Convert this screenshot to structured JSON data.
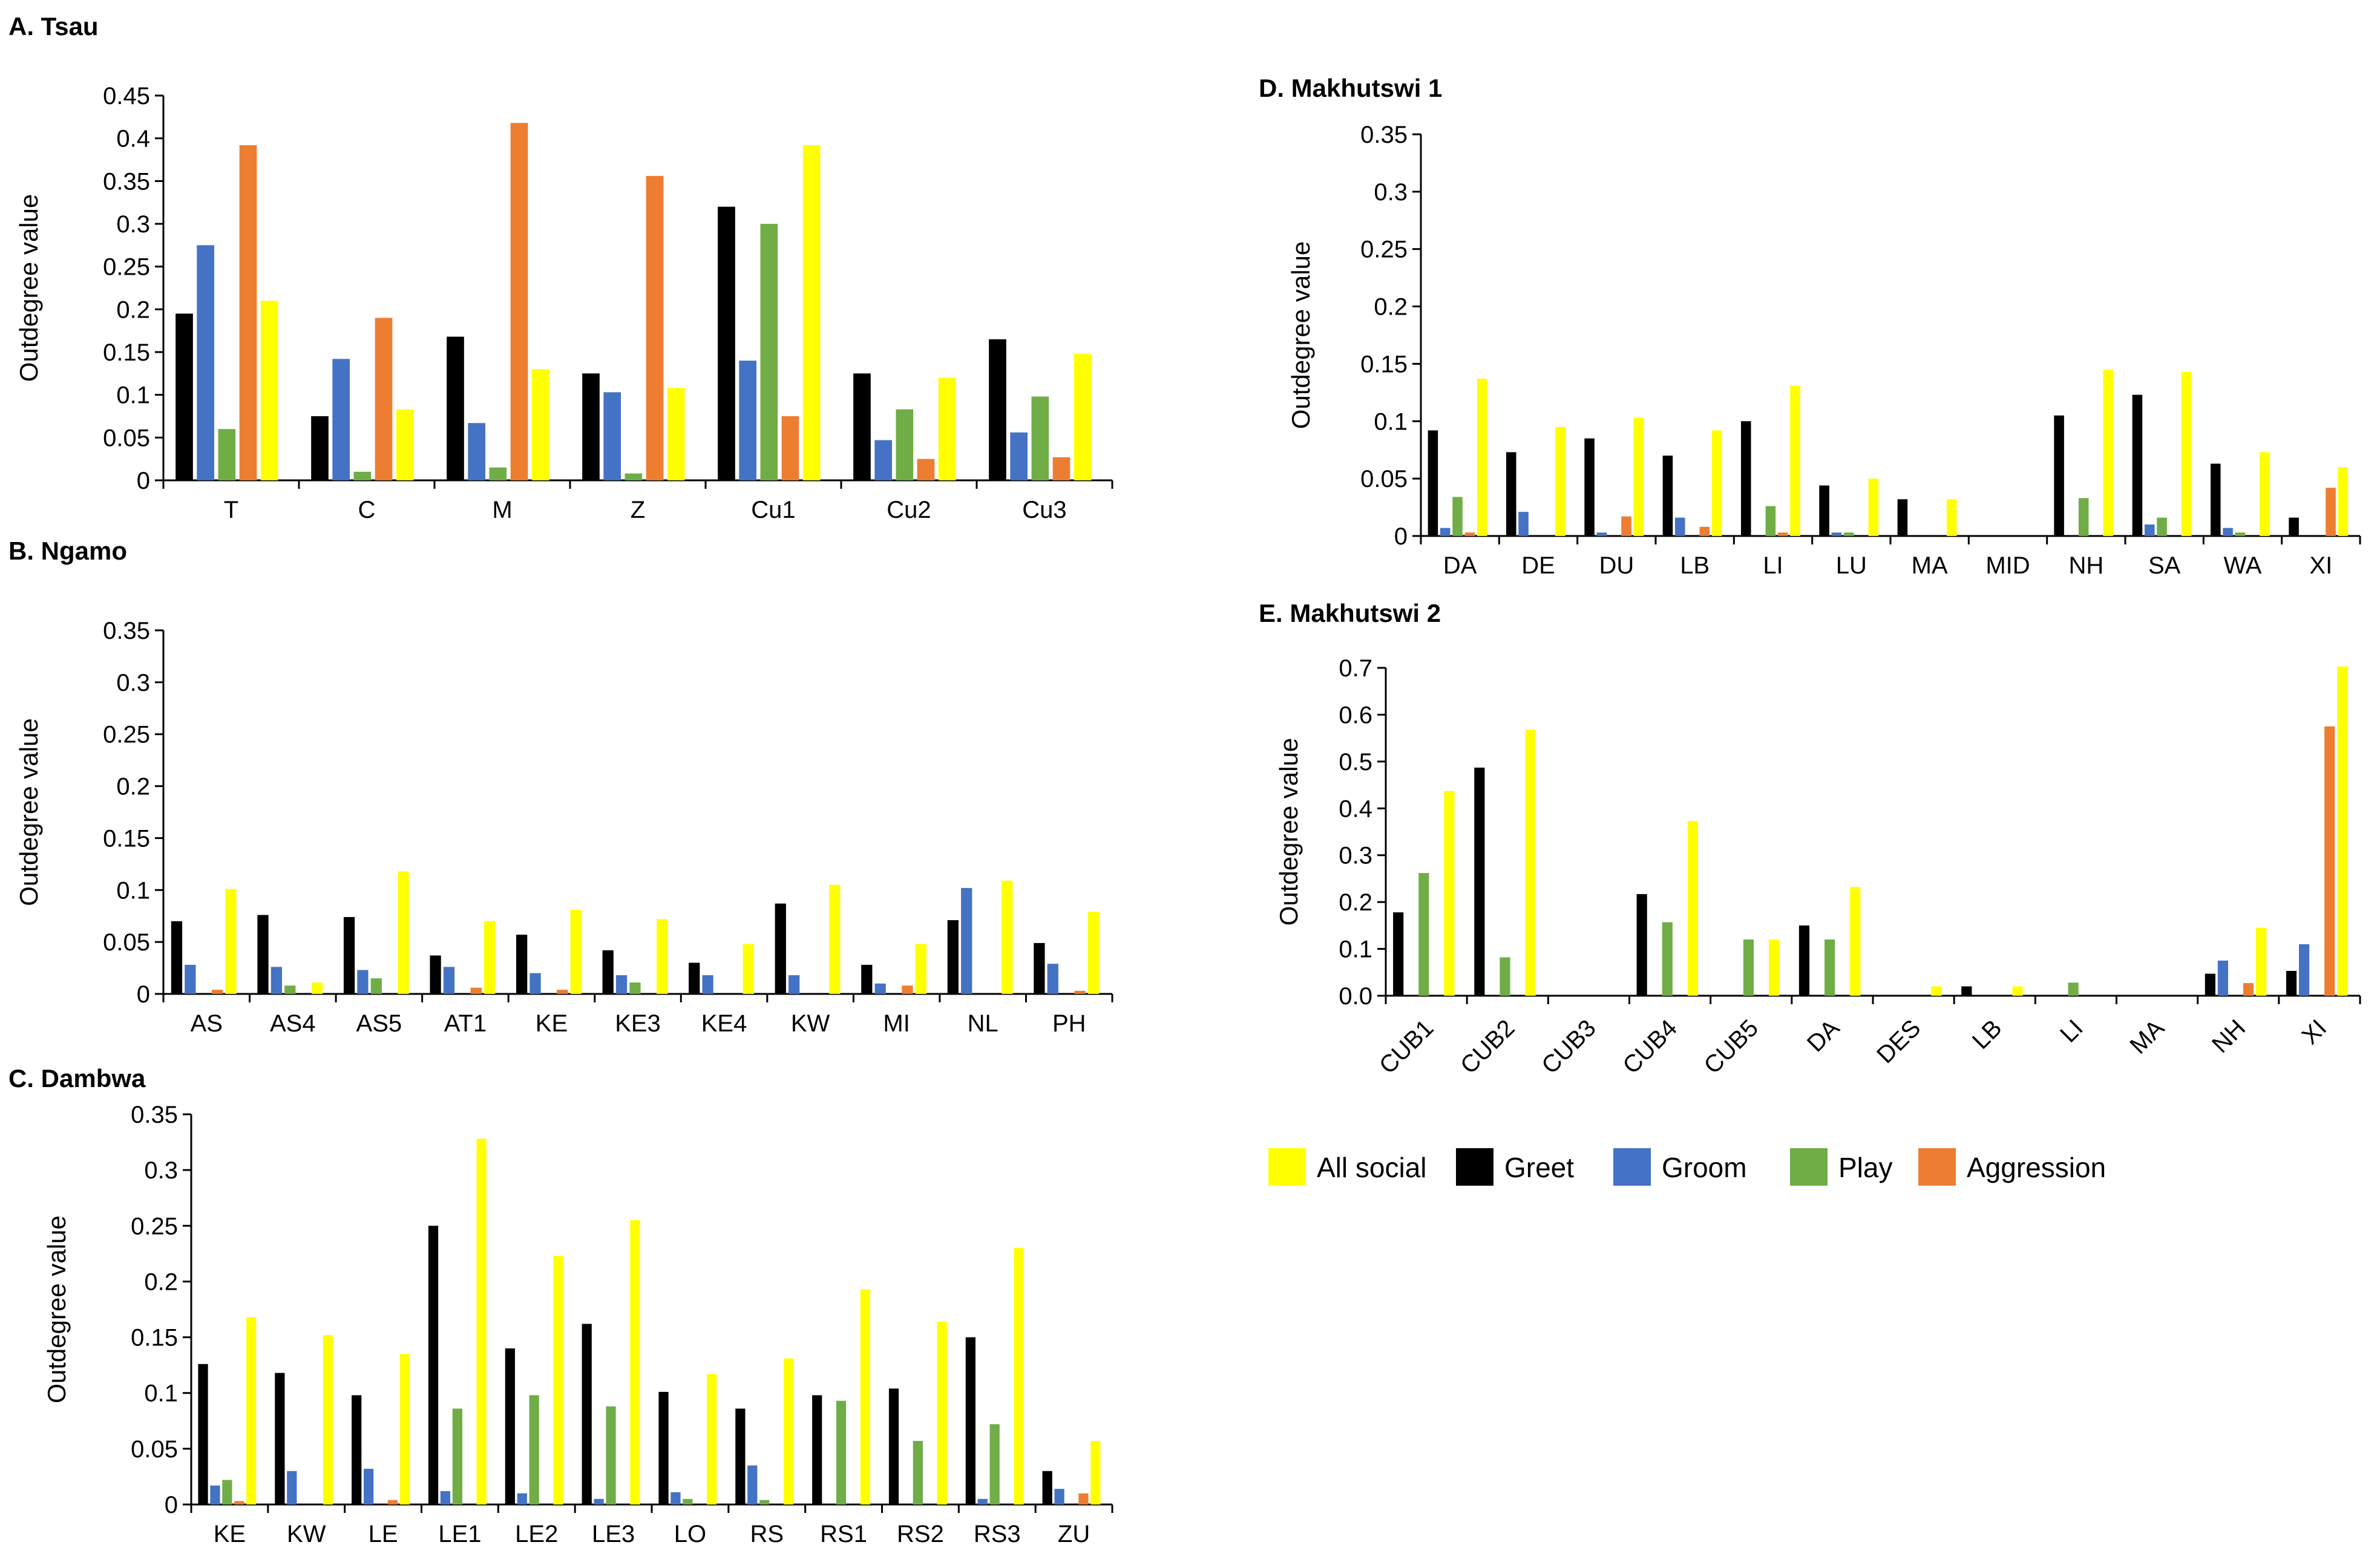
{
  "figure": {
    "legend": [
      {
        "label": "All social",
        "color": "#FFFF00"
      },
      {
        "label": "Greet",
        "color": "#000000"
      },
      {
        "label": "Groom",
        "color": "#4472C4"
      },
      {
        "label": "Play",
        "color": "#70AD47"
      },
      {
        "label": "Aggression",
        "color": "#ED7D31"
      }
    ]
  },
  "chart_data": [
    {
      "panel": "A",
      "type": "bar",
      "title": "A. Tsau",
      "ylabel": "Outdegree value",
      "xlabel": "",
      "ylim": [
        0,
        0.45
      ],
      "yticks": [
        "0",
        "0.05",
        "0.1",
        "0.15",
        "0.2",
        "0.25",
        "0.3",
        "0.35",
        "0.4",
        "0.45"
      ],
      "categories": [
        "T",
        "C",
        "M",
        "Z",
        "Cu1",
        "Cu2",
        "Cu3"
      ],
      "series": [
        {
          "name": "Greet",
          "color": "#000000",
          "values": [
            0.195,
            0.075,
            0.168,
            0.125,
            0.32,
            0.125,
            0.165
          ]
        },
        {
          "name": "Groom",
          "color": "#4472C4",
          "values": [
            0.275,
            0.142,
            0.067,
            0.103,
            0.14,
            0.047,
            0.056
          ]
        },
        {
          "name": "Play",
          "color": "#70AD47",
          "values": [
            0.06,
            0.01,
            0.015,
            0.008,
            0.3,
            0.083,
            0.098
          ]
        },
        {
          "name": "Aggression",
          "color": "#ED7D31",
          "values": [
            0.392,
            0.19,
            0.418,
            0.356,
            0.075,
            0.025,
            0.027
          ]
        },
        {
          "name": "All social",
          "color": "#FFFF00",
          "values": [
            0.21,
            0.083,
            0.13,
            0.108,
            0.392,
            0.12,
            0.148
          ]
        }
      ]
    },
    {
      "panel": "B",
      "type": "bar",
      "title": "B. Ngamo",
      "ylabel": "Outdegree value",
      "xlabel": "",
      "ylim": [
        0,
        0.35
      ],
      "yticks": [
        "0",
        "0.05",
        "0.1",
        "0.15",
        "0.2",
        "0.25",
        "0.3",
        "0.35"
      ],
      "categories": [
        "AS",
        "AS4",
        "AS5",
        "AT1",
        "KE",
        "KE3",
        "KE4",
        "KW",
        "MI",
        "NL",
        "PH"
      ],
      "series": [
        {
          "name": "Greet",
          "color": "#000000",
          "values": [
            0.07,
            0.076,
            0.074,
            0.037,
            0.057,
            0.042,
            0.03,
            0.087,
            0.028,
            0.071,
            0.049
          ]
        },
        {
          "name": "Groom",
          "color": "#4472C4",
          "values": [
            0.028,
            0.026,
            0.023,
            0.026,
            0.02,
            0.018,
            0.018,
            0.018,
            0.01,
            0.102,
            0.029
          ]
        },
        {
          "name": "Play",
          "color": "#70AD47",
          "values": [
            0.0,
            0.008,
            0.015,
            0.0,
            0.0,
            0.011,
            0.0,
            0.0,
            0.0,
            0.0,
            0.0
          ]
        },
        {
          "name": "Aggression",
          "color": "#ED7D31",
          "values": [
            0.004,
            0.0,
            0.0,
            0.006,
            0.004,
            0.0,
            0.0,
            0.0,
            0.008,
            0.0,
            0.003
          ]
        },
        {
          "name": "All social",
          "color": "#FFFF00",
          "values": [
            0.101,
            0.011,
            0.118,
            0.07,
            0.081,
            0.072,
            0.048,
            0.105,
            0.048,
            0.109,
            0.079
          ]
        }
      ]
    },
    {
      "panel": "C",
      "type": "bar",
      "title": "C. Dambwa",
      "ylabel": "Outdegree value",
      "xlabel": "",
      "ylim": [
        0,
        0.35
      ],
      "yticks": [
        "0",
        "0.05",
        "0.1",
        "0.15",
        "0.2",
        "0.25",
        "0.3",
        "0.35"
      ],
      "categories": [
        "KE",
        "KW",
        "LE",
        "LE1",
        "LE2",
        "LE3",
        "LO",
        "RS",
        "RS1",
        "RS2",
        "RS3",
        "ZU"
      ],
      "series": [
        {
          "name": "Greet",
          "color": "#000000",
          "values": [
            0.126,
            0.118,
            0.098,
            0.25,
            0.14,
            0.162,
            0.101,
            0.086,
            0.098,
            0.104,
            0.15,
            0.03
          ]
        },
        {
          "name": "Groom",
          "color": "#4472C4",
          "values": [
            0.017,
            0.03,
            0.032,
            0.012,
            0.01,
            0.005,
            0.011,
            0.035,
            0.0,
            0.0,
            0.005,
            0.014
          ]
        },
        {
          "name": "Play",
          "color": "#70AD47",
          "values": [
            0.022,
            0.0,
            0.0,
            0.086,
            0.098,
            0.088,
            0.005,
            0.004,
            0.093,
            0.057,
            0.072,
            0.0
          ]
        },
        {
          "name": "Aggression",
          "color": "#ED7D31",
          "values": [
            0.003,
            0.0,
            0.004,
            0.0,
            0.0,
            0.0,
            0.0,
            0.0,
            0.0,
            0.0,
            0.0,
            0.01
          ]
        },
        {
          "name": "All social",
          "color": "#FFFF00",
          "values": [
            0.168,
            0.152,
            0.135,
            0.328,
            0.223,
            0.255,
            0.117,
            0.131,
            0.193,
            0.164,
            0.23,
            0.057
          ]
        }
      ]
    },
    {
      "panel": "D",
      "type": "bar",
      "title": "D. Makhutswi 1",
      "ylabel": "Outdegree value",
      "xlabel": "",
      "ylim": [
        0,
        0.35
      ],
      "yticks": [
        "0",
        "0.05",
        "0.1",
        "0.15",
        "0.2",
        "0.25",
        "0.3",
        "0.35"
      ],
      "categories": [
        "DA",
        "DE",
        "DU",
        "LB",
        "LI",
        "LU",
        "MA",
        "MID",
        "NH",
        "SA",
        "WA",
        "XI"
      ],
      "series": [
        {
          "name": "Greet",
          "color": "#000000",
          "values": [
            0.092,
            0.073,
            0.085,
            0.07,
            0.1,
            0.044,
            0.032,
            0.0,
            0.105,
            0.123,
            0.063,
            0.016
          ]
        },
        {
          "name": "Groom",
          "color": "#4472C4",
          "values": [
            0.007,
            0.021,
            0.003,
            0.016,
            0.0,
            0.003,
            0.0,
            0.0,
            0.0,
            0.01,
            0.007,
            0.0
          ]
        },
        {
          "name": "Play",
          "color": "#70AD47",
          "values": [
            0.034,
            0.0,
            0.0,
            0.0,
            0.026,
            0.003,
            0.0,
            0.0,
            0.033,
            0.016,
            0.003,
            0.0
          ]
        },
        {
          "name": "Aggression",
          "color": "#ED7D31",
          "values": [
            0.003,
            0.0,
            0.017,
            0.008,
            0.003,
            0.0,
            0.0,
            0.0,
            0.0,
            0.0,
            0.0,
            0.042
          ]
        },
        {
          "name": "All social",
          "color": "#FFFF00",
          "values": [
            0.137,
            0.095,
            0.103,
            0.092,
            0.131,
            0.05,
            0.032,
            0.0,
            0.145,
            0.143,
            0.073,
            0.06
          ]
        }
      ]
    },
    {
      "panel": "E",
      "type": "bar",
      "title": "E. Makhutswi 2",
      "ylabel": "Outdegree value",
      "xlabel": "",
      "ylim": [
        0,
        0.7
      ],
      "yticks": [
        "0.0",
        "0.1",
        "0.2",
        "0.3",
        "0.4",
        "0.5",
        "0.6",
        "0.7"
      ],
      "categories": [
        "CUB1",
        "CUB2",
        "CUB3",
        "CUB4",
        "CUB5",
        "DA",
        "DES",
        "LB",
        "LI",
        "MA",
        "NH",
        "XI"
      ],
      "series": [
        {
          "name": "Greet",
          "color": "#000000",
          "values": [
            0.178,
            0.487,
            0.0,
            0.217,
            0.0,
            0.15,
            0.0,
            0.02,
            0.0,
            0.0,
            0.047,
            0.053
          ]
        },
        {
          "name": "Groom",
          "color": "#4472C4",
          "values": [
            0.0,
            0.0,
            0.0,
            0.0,
            0.0,
            0.0,
            0.0,
            0.0,
            0.0,
            0.0,
            0.075,
            0.11
          ]
        },
        {
          "name": "Play",
          "color": "#70AD47",
          "values": [
            0.262,
            0.082,
            0.0,
            0.157,
            0.12,
            0.12,
            0.0,
            0.0,
            0.028,
            0.0,
            0.0,
            0.0
          ]
        },
        {
          "name": "Aggression",
          "color": "#ED7D31",
          "values": [
            0.0,
            0.0,
            0.0,
            0.0,
            0.0,
            0.0,
            0.0,
            0.0,
            0.0,
            0.0,
            0.027,
            0.575
          ]
        },
        {
          "name": "All social",
          "color": "#FFFF00",
          "values": [
            0.437,
            0.568,
            0.0,
            0.373,
            0.12,
            0.232,
            0.02,
            0.02,
            0.0,
            0.0,
            0.145,
            0.703
          ]
        }
      ]
    }
  ]
}
